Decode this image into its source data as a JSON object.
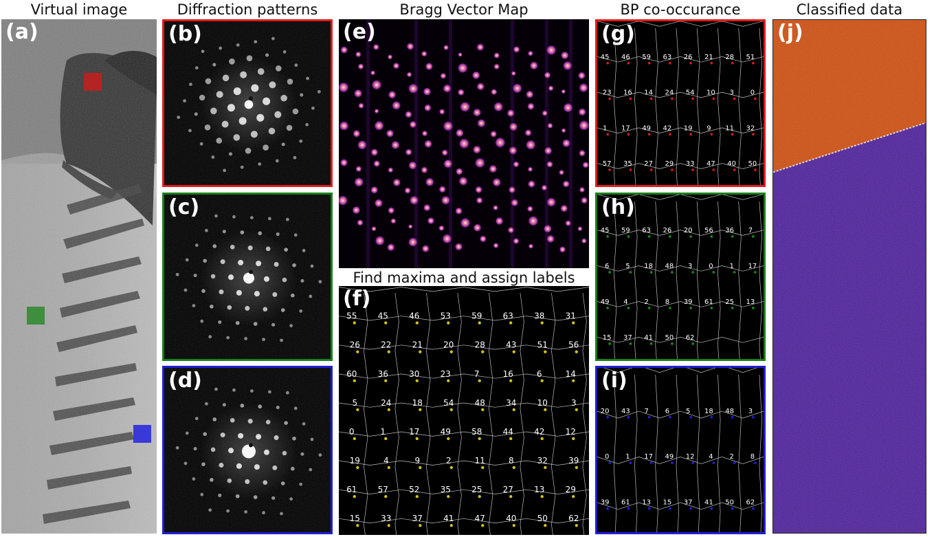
{
  "titles": {
    "a": "Virtual image",
    "b": "Diffraction patterns",
    "e": "Bragg Vector Map",
    "f": "Find maxima and assign labels",
    "g": "BP co-occurance",
    "j": "Classified data"
  },
  "letters": {
    "a": "(a)",
    "b": "(b)",
    "c": "(c)",
    "d": "(d)",
    "e": "(e)",
    "f": "(f)",
    "g": "(g)",
    "h": "(h)",
    "i": "(i)",
    "j": "(j)"
  },
  "colors": {
    "red": "#e41a1c",
    "green": "#1a7f1a",
    "blue": "#1f1fd6",
    "label_f": "#d4c21a",
    "label_g": "#e41a1c",
    "label_h": "#1a8f1a",
    "label_i": "#2020e0",
    "class_orange": "#d04a08",
    "class_purple": "#4a1a9a"
  },
  "panel_f_labels": [
    "55",
    "45",
    "46",
    "53",
    "59",
    "63",
    "38",
    "31",
    "26",
    "22",
    "21",
    "20",
    "28",
    "43",
    "51",
    "56",
    "60",
    "36",
    "30",
    "23",
    "7",
    "16",
    "6",
    "14",
    "5",
    "24",
    "18",
    "54",
    "48",
    "34",
    "10",
    "3",
    "0",
    "1",
    "17",
    "49",
    "58",
    "44",
    "42",
    "12",
    "19",
    "4",
    "9",
    "2",
    "11",
    "8",
    "32",
    "39",
    "61",
    "57",
    "52",
    "35",
    "25",
    "27",
    "13",
    "29",
    "15",
    "33",
    "37",
    "41",
    "47",
    "40",
    "50",
    "62"
  ],
  "panel_g_labels": [
    "45",
    "46",
    "59",
    "63",
    "26",
    "21",
    "28",
    "51",
    "23",
    "16",
    "14",
    "24",
    "54",
    "10",
    "3",
    "0",
    "1",
    "17",
    "49",
    "42",
    "19",
    "9",
    "11",
    "32",
    "57",
    "35",
    "27",
    "29",
    "33",
    "47",
    "40",
    "50"
  ],
  "panel_h_labels": [
    "45",
    "59",
    "63",
    "26",
    "20",
    "56",
    "36",
    "7",
    "6",
    "5",
    "18",
    "48",
    "3",
    "0",
    "1",
    "17",
    "49",
    "4",
    "2",
    "8",
    "39",
    "61",
    "25",
    "13",
    "15",
    "37",
    "41",
    "50",
    "62"
  ],
  "panel_i_labels": [
    "20",
    "43",
    "7",
    "6",
    "5",
    "18",
    "48",
    "3",
    "0",
    "1",
    "17",
    "49",
    "12",
    "4",
    "2",
    "8",
    "39",
    "61",
    "13",
    "15",
    "37",
    "41",
    "50",
    "62"
  ]
}
